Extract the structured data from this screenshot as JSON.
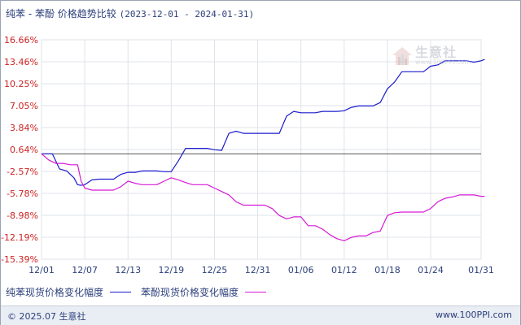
{
  "title": {
    "products": "纯苯 - 苯酚 价格趋势比较",
    "range": "(2023-12-01 - 2024-01-31)"
  },
  "footer": {
    "copyright": "© 2025.07 生意社",
    "url": "www.100PPI.com"
  },
  "watermark": {
    "name": "生意社",
    "url": "www.100PPI.com"
  },
  "colors": {
    "benzene": "#1c1ccf",
    "phenol": "#d61ad6",
    "ytick": "#cc2222",
    "xtick": "#2b3f7a",
    "grid": "#dfe3ea"
  },
  "chart_data": {
    "type": "line",
    "title": "纯苯 - 苯酚 价格趋势比较",
    "xlabel": "",
    "ylabel": "",
    "x_ticks": [
      "12/01",
      "12/07",
      "12/13",
      "12/19",
      "12/25",
      "12/31",
      "01/06",
      "01/12",
      "01/18",
      "01/24",
      "01/31"
    ],
    "x_tick_days": [
      0,
      6,
      12,
      18,
      24,
      30,
      36,
      42,
      48,
      54,
      61
    ],
    "y_ticks": [
      "16.66%",
      "13.46%",
      "10.25%",
      "7.05%",
      "3.84%",
      "0.64%",
      "-2.57%",
      "-5.78%",
      "-8.98%",
      "-12.19%",
      "-15.39%"
    ],
    "ylim": [
      -15.39,
      16.66
    ],
    "zero_line": 0,
    "grid": true,
    "legend": "bottom",
    "series": [
      {
        "name": "纯苯现货价格变化幅度",
        "key": "benzene",
        "points": [
          [
            0,
            0
          ],
          [
            1.5,
            0
          ],
          [
            2.5,
            -2.2
          ],
          [
            3.5,
            -2.5
          ],
          [
            4.5,
            -3.5
          ],
          [
            5,
            -4.5
          ],
          [
            5.5,
            -4.6
          ],
          [
            6,
            -4.5
          ],
          [
            7,
            -3.8
          ],
          [
            8,
            -3.7
          ],
          [
            9,
            -3.7
          ],
          [
            10,
            -3.7
          ],
          [
            11,
            -3.0
          ],
          [
            12,
            -2.7
          ],
          [
            13,
            -2.7
          ],
          [
            14,
            -2.5
          ],
          [
            15,
            -2.5
          ],
          [
            16,
            -2.5
          ],
          [
            17,
            -2.6
          ],
          [
            18,
            -2.6
          ],
          [
            19,
            -1.0
          ],
          [
            20,
            0.8
          ],
          [
            21,
            0.8
          ],
          [
            22,
            0.8
          ],
          [
            23,
            0.8
          ],
          [
            24,
            0.6
          ],
          [
            25,
            0.5
          ],
          [
            26,
            3.0
          ],
          [
            27,
            3.3
          ],
          [
            28,
            3.0
          ],
          [
            29,
            3.0
          ],
          [
            30,
            3.0
          ],
          [
            31,
            3.0
          ],
          [
            32,
            3.0
          ],
          [
            33,
            3.0
          ],
          [
            34,
            5.5
          ],
          [
            35,
            6.2
          ],
          [
            36,
            6.0
          ],
          [
            37,
            6.0
          ],
          [
            38,
            6.0
          ],
          [
            39,
            6.2
          ],
          [
            40,
            6.2
          ],
          [
            41,
            6.2
          ],
          [
            42,
            6.3
          ],
          [
            43,
            6.8
          ],
          [
            44,
            7.0
          ],
          [
            45,
            7.0
          ],
          [
            46,
            7.0
          ],
          [
            47,
            7.5
          ],
          [
            48,
            9.5
          ],
          [
            49,
            10.5
          ],
          [
            50,
            12.0
          ],
          [
            51,
            12.0
          ],
          [
            52,
            12.0
          ],
          [
            53,
            12.0
          ],
          [
            54,
            12.8
          ],
          [
            55,
            13.0
          ],
          [
            56,
            13.6
          ],
          [
            57,
            13.6
          ],
          [
            58,
            13.6
          ],
          [
            59,
            13.6
          ],
          [
            60,
            13.4
          ],
          [
            61,
            13.6
          ],
          [
            61.5,
            13.8
          ]
        ]
      },
      {
        "name": "苯酚现货价格变化幅度",
        "key": "phenol",
        "points": [
          [
            0,
            0
          ],
          [
            1,
            -0.9
          ],
          [
            2,
            -1.4
          ],
          [
            3,
            -1.4
          ],
          [
            4,
            -1.6
          ],
          [
            5,
            -1.6
          ],
          [
            5.5,
            -4.0
          ],
          [
            6,
            -5.0
          ],
          [
            7,
            -5.3
          ],
          [
            8,
            -5.3
          ],
          [
            9,
            -5.3
          ],
          [
            10,
            -5.3
          ],
          [
            11,
            -4.8
          ],
          [
            12,
            -4.0
          ],
          [
            13,
            -4.3
          ],
          [
            14,
            -4.5
          ],
          [
            15,
            -4.5
          ],
          [
            16,
            -4.5
          ],
          [
            17,
            -4.0
          ],
          [
            18,
            -3.5
          ],
          [
            19,
            -3.8
          ],
          [
            20,
            -4.2
          ],
          [
            21,
            -4.5
          ],
          [
            22,
            -4.5
          ],
          [
            23,
            -4.5
          ],
          [
            24,
            -5.0
          ],
          [
            25,
            -5.5
          ],
          [
            26,
            -6.0
          ],
          [
            27,
            -7.0
          ],
          [
            28,
            -7.5
          ],
          [
            29,
            -7.5
          ],
          [
            30,
            -7.5
          ],
          [
            31,
            -7.5
          ],
          [
            32,
            -8.0
          ],
          [
            33,
            -9.0
          ],
          [
            34,
            -9.5
          ],
          [
            35,
            -9.2
          ],
          [
            36,
            -9.2
          ],
          [
            37,
            -10.5
          ],
          [
            38,
            -10.5
          ],
          [
            39,
            -11.0
          ],
          [
            40,
            -11.8
          ],
          [
            41,
            -12.4
          ],
          [
            42,
            -12.7
          ],
          [
            43,
            -12.2
          ],
          [
            44,
            -12.0
          ],
          [
            45,
            -12.0
          ],
          [
            46,
            -11.5
          ],
          [
            47,
            -11.3
          ],
          [
            48,
            -9.0
          ],
          [
            49,
            -8.6
          ],
          [
            50,
            -8.5
          ],
          [
            51,
            -8.5
          ],
          [
            52,
            -8.5
          ],
          [
            53,
            -8.5
          ],
          [
            54,
            -8.0
          ],
          [
            55,
            -7.0
          ],
          [
            56,
            -6.5
          ],
          [
            57,
            -6.3
          ],
          [
            58,
            -6.0
          ],
          [
            59,
            -6.0
          ],
          [
            60,
            -6.0
          ],
          [
            61,
            -6.2
          ],
          [
            61.5,
            -6.2
          ]
        ]
      }
    ]
  }
}
